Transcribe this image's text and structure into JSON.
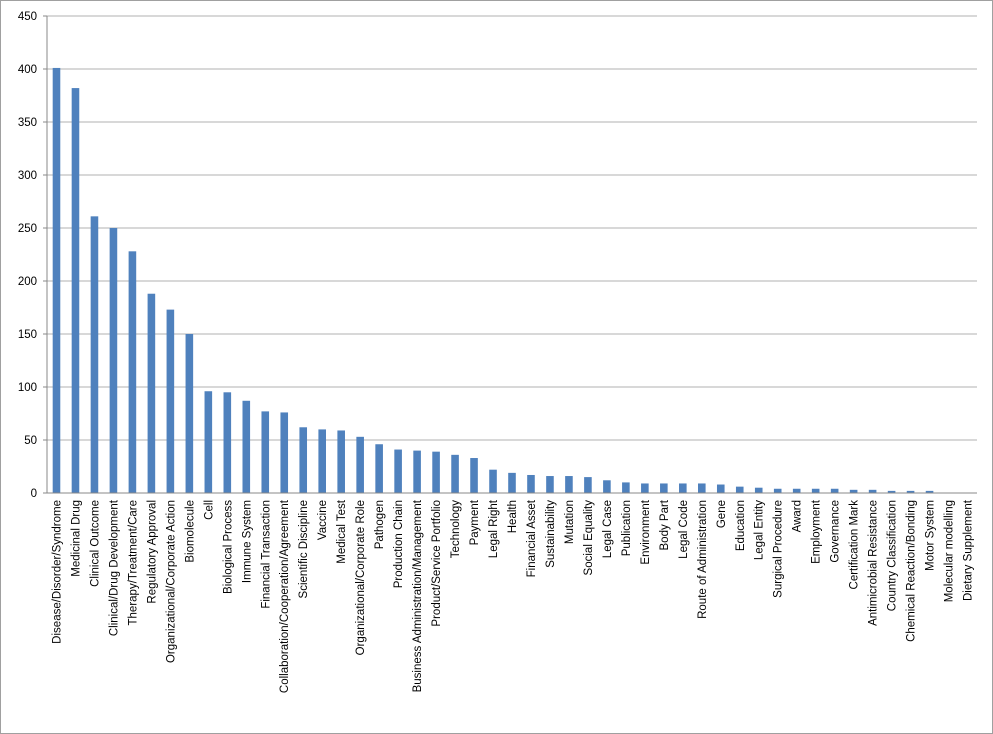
{
  "chart_data": {
    "type": "bar",
    "categories": [
      "Disease/Disorder/Syndrome",
      "Medicinal Drug",
      "Clinical Outcome",
      "Clinical/Drug Development",
      "Therapy/Treatment/Care",
      "Regulatory Approval",
      "Organizational/Corporate Action",
      "Biomolecule",
      "Cell",
      "Biological Process",
      "Immune System",
      "Financial Transaction",
      "Collaboration/Cooperation/Agreement",
      "Scientific Discipline",
      "Vaccine",
      "Medical Test",
      "Organizational/Corporate Role",
      "Pathogen",
      "Production Chain",
      "Business Administration/Management",
      "Product/Service Portfolio",
      "Technology",
      "Payment",
      "Legal Right",
      "Health",
      "Financial Asset",
      "Sustainability",
      "Mutation",
      "Social Equality",
      "Legal Case",
      "Publication",
      "Environment",
      "Body Part",
      "Legal Code",
      "Route of Administration",
      "Gene",
      "Education",
      "Legal Entity",
      "Surgical Procedure",
      "Award",
      "Employment",
      "Governance",
      "Certification Mark",
      "Antimicrobial Resistance",
      "Country Classification",
      "Chemical Reaction/Bonding",
      "Motor System",
      "Molecular modelling",
      "Dietary Supplement"
    ],
    "values": [
      401,
      382,
      261,
      250,
      228,
      188,
      173,
      150,
      96,
      95,
      87,
      77,
      76,
      62,
      60,
      59,
      53,
      46,
      41,
      40,
      39,
      36,
      33,
      22,
      19,
      17,
      16,
      16,
      15,
      12,
      10,
      9,
      9,
      9,
      9,
      8,
      6,
      5,
      4,
      4,
      4,
      4,
      3,
      3,
      2,
      2,
      2,
      0,
      0
    ],
    "color": "#4f81bd",
    "ylim": [
      0,
      450
    ],
    "yticks": [
      0,
      50,
      100,
      150,
      200,
      250,
      300,
      350,
      400,
      450
    ],
    "grid": true
  }
}
